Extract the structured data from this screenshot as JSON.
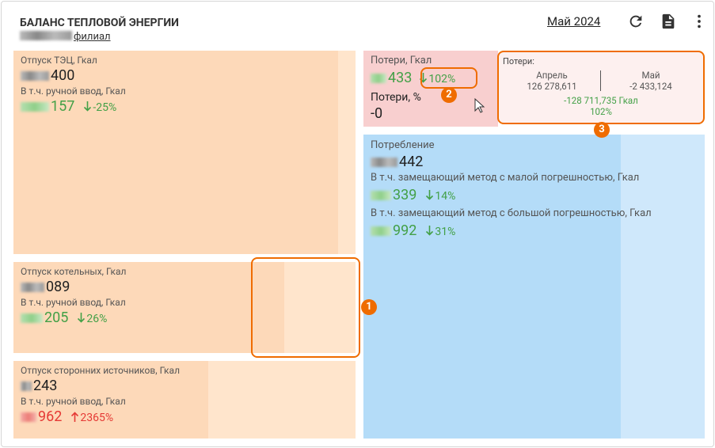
{
  "header": {
    "title": "БАЛАНС ТЕПЛОВОЙ ЭНЕРГИИ",
    "subtitle": "филиал",
    "period": "Май 2024"
  },
  "tiles": [
    {
      "label": "Отпуск ТЭЦ, Гкал",
      "value": "400",
      "sub_label": "В т.ч. ручной ввод, Гкал",
      "sub_value": "157",
      "change": "-25%"
    },
    {
      "label": "Отпуск котельных, Гкал",
      "value": "089",
      "sub_label": "В т.ч. ручной ввод, Гкал",
      "sub_value": "205",
      "change": "26%"
    },
    {
      "label": "Отпуск сторонних источников, Гкал",
      "value": "243",
      "sub_label": "В т.ч. ручной ввод, Гкал",
      "sub_value": "962",
      "change": "2365%"
    }
  ],
  "losses": {
    "label": "Потери, Гкал",
    "value": "433",
    "change": "102%",
    "percent_label": "Потери, %",
    "percent_value": "-0"
  },
  "tooltip": {
    "title": "Потери:",
    "columns": [
      {
        "label": "Апрель",
        "value": "126 278,611"
      },
      {
        "label": "Май",
        "value": "-2 433,124"
      }
    ],
    "difference": "-128 711,735 Гкал",
    "percent": "102%"
  },
  "consumption": {
    "label": "Потребление",
    "value": "442",
    "rows": [
      {
        "label": "В т.ч. замещающий метод с малой погрешностью, Гкал",
        "value": "339",
        "change": "14%"
      },
      {
        "label": "В т.ч. замещающий метод с большой погрешностью, Гкал",
        "value": "992",
        "change": "31%"
      }
    ]
  },
  "annotations": [
    "1",
    "2",
    "3"
  ]
}
